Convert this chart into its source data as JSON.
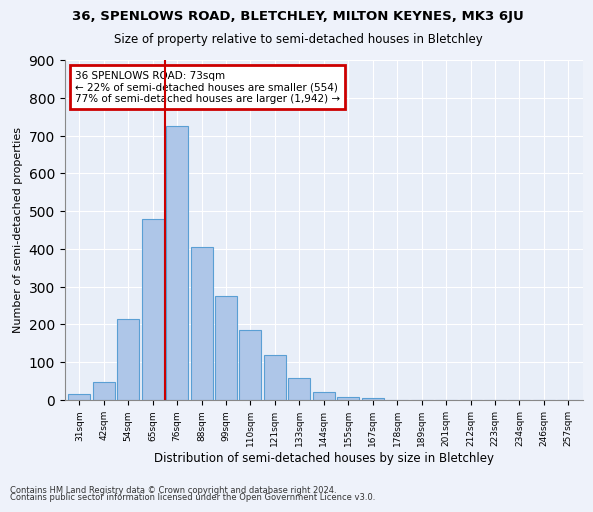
{
  "title1": "36, SPENLOWS ROAD, BLETCHLEY, MILTON KEYNES, MK3 6JU",
  "title2": "Size of property relative to semi-detached houses in Bletchley",
  "xlabel": "Distribution of semi-detached houses by size in Bletchley",
  "ylabel": "Number of semi-detached properties",
  "bin_labels": [
    "31sqm",
    "42sqm",
    "54sqm",
    "65sqm",
    "76sqm",
    "88sqm",
    "99sqm",
    "110sqm",
    "121sqm",
    "133sqm",
    "144sqm",
    "155sqm",
    "167sqm",
    "178sqm",
    "189sqm",
    "201sqm",
    "212sqm",
    "223sqm",
    "234sqm",
    "246sqm",
    "257sqm"
  ],
  "bar_heights": [
    15,
    48,
    215,
    478,
    725,
    405,
    275,
    185,
    120,
    57,
    20,
    8,
    5,
    0,
    0,
    0,
    0,
    0,
    0,
    0,
    0
  ],
  "bar_color": "#aec6e8",
  "bar_edge_color": "#5a9fd4",
  "vline_bin_index": 4,
  "vline_color": "#cc0000",
  "annotation_text": "36 SPENLOWS ROAD: 73sqm\n← 22% of semi-detached houses are smaller (554)\n77% of semi-detached houses are larger (1,942) →",
  "annotation_box_edgecolor": "#cc0000",
  "ylim": [
    0,
    900
  ],
  "yticks": [
    0,
    100,
    200,
    300,
    400,
    500,
    600,
    700,
    800,
    900
  ],
  "background_color": "#e8eef8",
  "grid_color": "#ffffff",
  "footer1": "Contains HM Land Registry data © Crown copyright and database right 2024.",
  "footer2": "Contains public sector information licensed under the Open Government Licence v3.0."
}
